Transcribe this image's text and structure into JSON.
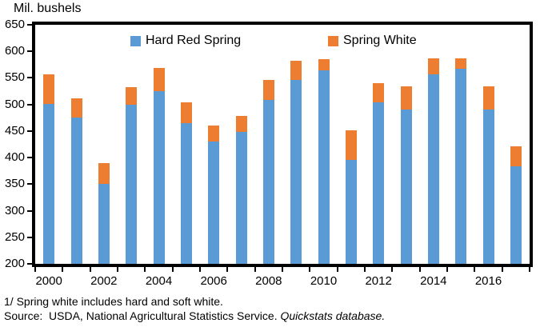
{
  "title": "Mil. bushels",
  "legend": {
    "items": [
      {
        "label": "Hard Red Spring",
        "color": "#5B9BD5"
      },
      {
        "label": "Spring White",
        "color": "#ED7D31"
      }
    ]
  },
  "footnotes": {
    "line1": "1/ Spring white includes hard and soft white.",
    "source_prefix": "Source:  USDA, National Agricultural Statistics Service. ",
    "source_italic": "Quickstats database."
  },
  "chart_data": {
    "type": "bar",
    "stacked": true,
    "title": "Mil. bushels",
    "ylabel": "Mil. bushels",
    "xlabel": "",
    "grid": false,
    "legend_position": "top-inside",
    "ylim": [
      200,
      650
    ],
    "yticks": [
      200,
      250,
      300,
      350,
      400,
      450,
      500,
      550,
      600,
      650
    ],
    "categories": [
      2000,
      2001,
      2002,
      2003,
      2004,
      2005,
      2006,
      2007,
      2008,
      2009,
      2010,
      2011,
      2012,
      2013,
      2014,
      2015,
      2016,
      2017
    ],
    "xtick_labels": [
      "2000",
      "2002",
      "2004",
      "2006",
      "2008",
      "2010",
      "2012",
      "2014",
      "2016"
    ],
    "series": [
      {
        "name": "Hard Red Spring",
        "color": "#5B9BD5",
        "values": [
          501,
          476,
          351,
          499,
          525,
          465,
          431,
          449,
          509,
          546,
          564,
          396,
          504,
          490,
          556,
          568,
          491,
          384
        ]
      },
      {
        "name": "Spring White",
        "color": "#ED7D31",
        "values": [
          56,
          35,
          38,
          33,
          44,
          39,
          29,
          29,
          37,
          37,
          22,
          56,
          36,
          44,
          31,
          19,
          43,
          38
        ]
      }
    ],
    "totals": [
      557,
      511,
      389,
      532,
      569,
      504,
      460,
      478,
      546,
      583,
      586,
      452,
      540,
      534,
      587,
      587,
      534,
      422
    ]
  }
}
